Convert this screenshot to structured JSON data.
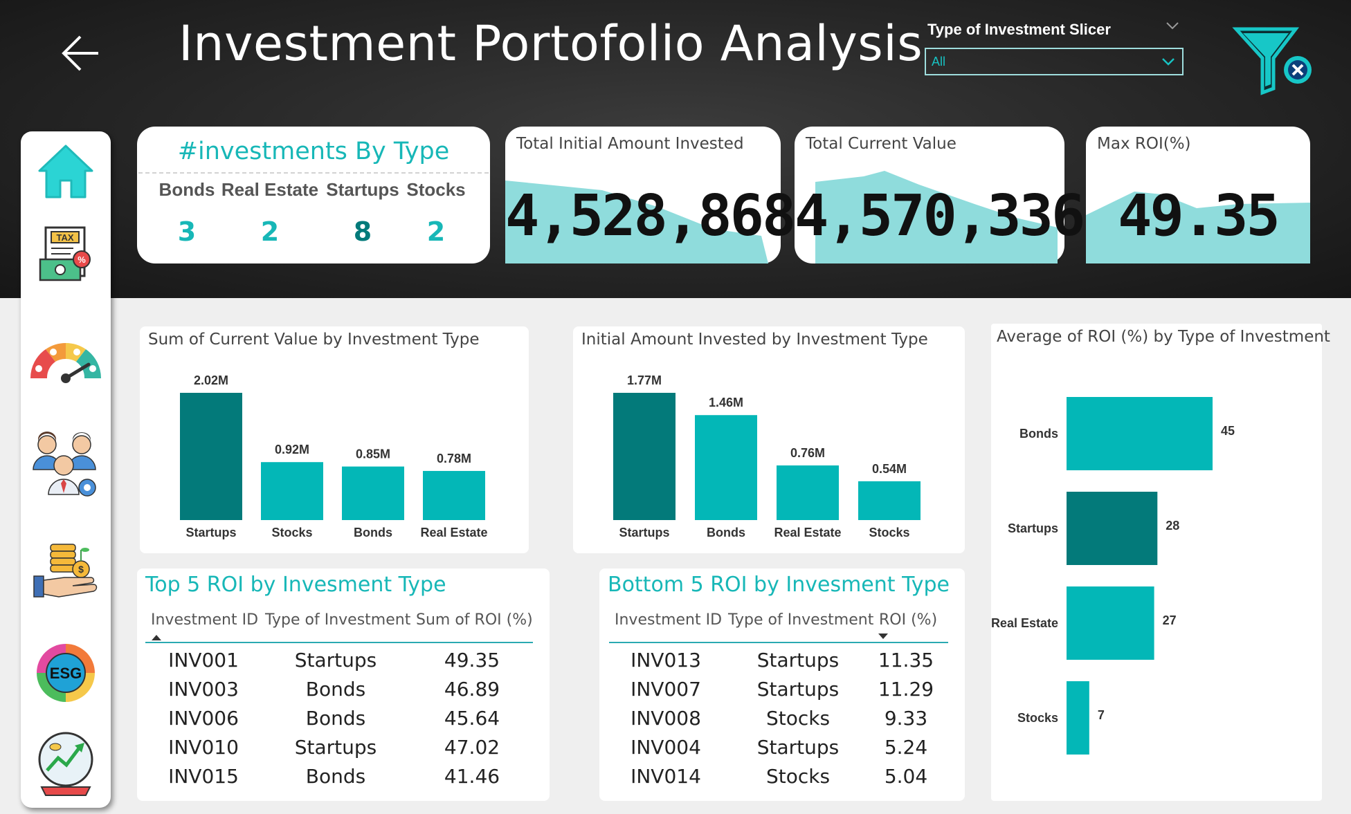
{
  "header": {
    "title": "Investment Portofolio Analysis",
    "slicer_label": "Type of Investment Slicer",
    "slicer_value": "All"
  },
  "sidebar": {
    "items": [
      {
        "name": "home-icon"
      },
      {
        "name": "tax-document-icon"
      },
      {
        "name": "gauge-icon"
      },
      {
        "name": "team-settings-icon"
      },
      {
        "name": "coins-hand-icon"
      },
      {
        "name": "esg-icon"
      },
      {
        "name": "growth-globe-icon"
      }
    ]
  },
  "investments_by_type": {
    "title": "#investments By Type",
    "types": [
      {
        "label": "Bonds",
        "count": "3"
      },
      {
        "label": "Real Estate",
        "count": "2"
      },
      {
        "label": "Startups",
        "count": "8"
      },
      {
        "label": "Stocks",
        "count": "2"
      }
    ]
  },
  "kpis": {
    "initial": {
      "title": "Total Initial Amount Invested",
      "value": "4,528,868"
    },
    "current": {
      "title": "Total Current Value",
      "value": "4,570,336"
    },
    "roi": {
      "title": "Max ROI(%)",
      "value": "49.35"
    }
  },
  "colors": {
    "accent": "#17b7b7",
    "teal_dark": "#037a7a",
    "teal": "#03b7b7",
    "teal_light": "#8fdcdc",
    "header_bg": "#262626"
  },
  "chart_data": [
    {
      "type": "bar",
      "title": "Sum of Current Value by Investment Type",
      "categories": [
        "Startups",
        "Stocks",
        "Bonds",
        "Real Estate"
      ],
      "values": [
        2.02,
        0.92,
        0.85,
        0.78
      ],
      "labels": [
        "2.02M",
        "0.92M",
        "0.85M",
        "0.78M"
      ],
      "unit": "M"
    },
    {
      "type": "bar",
      "title": "Initial Amount Invested by Investment Type",
      "categories": [
        "Startups",
        "Bonds",
        "Real Estate",
        "Stocks"
      ],
      "values": [
        1.77,
        1.46,
        0.76,
        0.54
      ],
      "labels": [
        "1.77M",
        "1.46M",
        "0.76M",
        "0.54M"
      ],
      "unit": "M"
    },
    {
      "type": "bar",
      "orientation": "horizontal",
      "title": "Average of ROI (%) by Type of Investment",
      "categories": [
        "Bonds",
        "Startups",
        "Real Estate",
        "Stocks"
      ],
      "values": [
        45,
        28,
        27,
        7
      ],
      "labels": [
        "45",
        "28",
        "27",
        "7"
      ]
    }
  ],
  "top5": {
    "title": "Top 5 ROI by Invesment Type",
    "headers": [
      "Investment ID",
      "Type of Investment",
      "Sum of ROI (%)"
    ],
    "rows": [
      [
        "INV001",
        "Startups",
        "49.35"
      ],
      [
        "INV003",
        "Bonds",
        "46.89"
      ],
      [
        "INV006",
        "Bonds",
        "45.64"
      ],
      [
        "INV010",
        "Startups",
        "47.02"
      ],
      [
        "INV015",
        "Bonds",
        "41.46"
      ]
    ]
  },
  "bottom5": {
    "title": "Bottom 5 ROI by Invesment Type",
    "headers": [
      "Investment ID",
      "Type of Investment",
      "ROI (%)"
    ],
    "rows": [
      [
        "INV013",
        "Startups",
        "11.35"
      ],
      [
        "INV007",
        "Startups",
        "11.29"
      ],
      [
        "INV008",
        "Stocks",
        "9.33"
      ],
      [
        "INV004",
        "Startups",
        "5.24"
      ],
      [
        "INV014",
        "Stocks",
        "5.04"
      ]
    ]
  }
}
